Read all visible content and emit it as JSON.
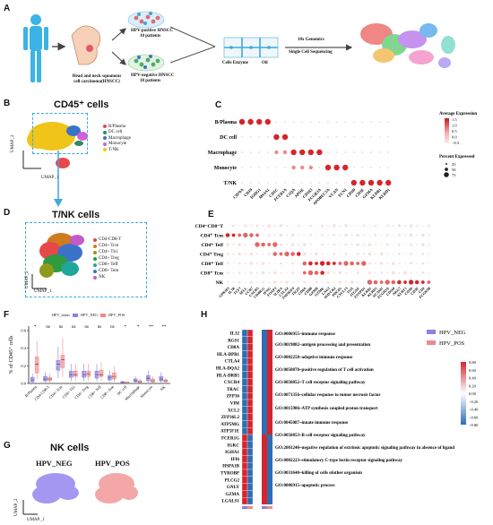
{
  "panels": {
    "A": {
      "label": "A",
      "labels": {
        "hnscc": "Head and neck squamous cell carcinoma(HNSCC)",
        "hpv_pos": "HPV-positive HNSCC",
        "hpv_pos_n": "10 patients",
        "hpv_neg": "HPV-negative HNSCC",
        "hpv_neg_n": "18 patients",
        "enzyme": "Cells Enzyme",
        "oil": "Oil",
        "genomics": "10x Genomics",
        "scseq": "Single Cell Sequencing"
      }
    },
    "B": {
      "label": "B",
      "title": "CD45⁺ cells",
      "legend": [
        {
          "name": "B/Plasma",
          "color": "#e8474a"
        },
        {
          "name": "DC cell",
          "color": "#2e8b57"
        },
        {
          "name": "Macrophage",
          "color": "#3b73c9"
        },
        {
          "name": "Monocyte",
          "color": "#d15fd6"
        },
        {
          "name": "T/NK",
          "color": "#f0c419"
        }
      ],
      "umap1": "UMAP_1",
      "umap2": "UMAP_2"
    },
    "C": {
      "label": "C",
      "rows": [
        "B/Plasma",
        "DC cell",
        "Macrophage",
        "Monocyte",
        "T/NK"
      ],
      "genes": [
        "CD79A",
        "CD19",
        "IGHG1",
        "MS4A1",
        "CD1C",
        "FCER1A",
        "C1QA",
        "APOE",
        "CD163",
        "FCGR3A",
        "APOBEC3A",
        "VCAN",
        "FCN1",
        "CD3D",
        "CD3E",
        "GZMA",
        "KLRB1",
        "KLRD1"
      ],
      "legend_title1": "Average Expression",
      "legend_ticks1": [
        "1.5",
        "1.0",
        "0.5",
        "0.0",
        "−0.5"
      ],
      "legend_title2": "Percent Expressed",
      "legend_pct": [
        "25",
        "50",
        "75"
      ]
    },
    "D": {
      "label": "D",
      "title": "T/NK cells",
      "legend": [
        {
          "name": "CD4-CD8-T",
          "color": "#e8474a"
        },
        {
          "name": "CD4+ Tcm",
          "color": "#d17b1f"
        },
        {
          "name": "CD4+ Th1",
          "color": "#8f9a1c"
        },
        {
          "name": "CD4+ Treg",
          "color": "#2f9a3f"
        },
        {
          "name": "CD8+ Teff",
          "color": "#1fa89a"
        },
        {
          "name": "CD8+ Tem",
          "color": "#3b73c9"
        },
        {
          "name": "NK",
          "color": "#c45ac9"
        }
      ],
      "umap1": "UMAP_1",
      "umap2": "UMAP_2"
    },
    "E": {
      "label": "E",
      "rows": [
        "CD4⁻CD8⁻T",
        "CD4⁺ Tcm",
        "CD4⁺ Teff",
        "CD4⁺ Treg",
        "CD8⁺ Teff",
        "CD8⁺ Tcm",
        "NK"
      ],
      "genes": [
        "GPR183",
        "IL7R",
        "TCF7",
        "SELL",
        "CCR7",
        "CXCR5",
        "CD40LG",
        "IFNG",
        "FOXP3",
        "IL2RA",
        "CTLA4",
        "TNFRSF4",
        "TIGIT",
        "CD8A",
        "CD8B",
        "GZMB",
        "GZMK",
        "LAG3",
        "HAVCR2",
        "PDCD1",
        "CXCL13",
        "TOX",
        "ITGAE",
        "ENTPD1",
        "KLRB1",
        "KLRD1",
        "NCAM1",
        "FCGR3A",
        "CD160",
        "NKG7",
        "KLRF1",
        "CD3D",
        "CD3E",
        "CD4",
        "FCGR3B"
      ]
    },
    "F": {
      "label": "F",
      "legend_title": "HPV_status",
      "legend_neg": "HPV_NEG",
      "legend_pos": "HPV_POS",
      "ylabel": "% of CD45⁺ cells",
      "yticks": [
        "0.0",
        "0.2",
        "0.4",
        "0.6"
      ],
      "categories": [
        "B/Plasma",
        "CD4-CD8-T",
        "CD4+ Tcm",
        "CD4+ Th1",
        "CD4+ Treg",
        "CD8+ Teff",
        "CD8+ Tem",
        "DC cell",
        "Macrophage",
        "Monocyte",
        "NK"
      ],
      "sig": [
        "*",
        "ns",
        "ns",
        "ns",
        "ns",
        "ns",
        "ns",
        "*",
        "*",
        "**",
        "**"
      ]
    },
    "G": {
      "label": "G",
      "title": "NK cells",
      "neg": "HPV_NEG",
      "pos": "HPV_POS",
      "umap1": "UMAP_1",
      "umap2": "UMAP_2"
    },
    "H": {
      "label": "H",
      "genes": [
        "IL32",
        "RGS1",
        "CD8A",
        "HLA-DPB1",
        "CTLA4",
        "HLA-DQA2",
        "HLA-DRB5",
        "CXCR4",
        "TRAC",
        "ZFP36",
        "VIM",
        "XCL2",
        "ZFP36L2",
        "ATP5MG",
        "ATP5F1E",
        "FCER1G",
        "IGKC",
        "IGHA1",
        "IFI6",
        "HSPA1B",
        "TYROBP",
        "PLCG2",
        "GNLY",
        "GZMA",
        "LGALS1"
      ],
      "go_terms": [
        "GO:0006955~immune response",
        "GO:0019882~antigen processing and presentation",
        "GO:0002250~adaptive immune response",
        "GO:0050870~positive regulation of T cell activation",
        "GO:0050852~T cell receptor signaling pathway",
        "GO:0071356~cellular response to tumor necrosis factor",
        "GO:0015986~ATP synthesis coupled proton transport",
        "GO:0045087~innate immune response",
        "GO:0050853~B cell receptor signaling pathway",
        "GO:2001240~negative regulation of extrinsic apoptotic signaling pathway in absence of ligand",
        "GO:0002223~stimulatory C-type lectin receptor signaling pathway",
        "GO:0031640~killing of cells ofother organism",
        "GO:0006915~apoptotic process"
      ],
      "legend": [
        {
          "name": "HPV_NEG",
          "color": "#8f7fe0"
        },
        {
          "name": "HPV_POS",
          "color": "#f08a8a"
        }
      ],
      "scale_ticks": [
        "0.80",
        "0.60",
        "0.40",
        "0.20",
        "0.00",
        "−0.20",
        "−0.40",
        "−0.60",
        "−0.80"
      ]
    }
  },
  "chart_data": {
    "type": "box",
    "ylabel": "% of CD45⁺ cells",
    "ylim": [
      0,
      0.65
    ],
    "categories": [
      "B/Plasma",
      "CD4-CD8-T",
      "CD4+ Tcm",
      "CD4+ Th1",
      "CD4+ Treg",
      "CD8+ Teff",
      "CD8+ Tem",
      "DC cell",
      "Macrophage",
      "Monocyte",
      "NK"
    ],
    "series": [
      {
        "name": "HPV_NEG",
        "color": "#8f7fe0",
        "median": [
          0.04,
          0.05,
          0.22,
          0.1,
          0.1,
          0.1,
          0.07,
          0.01,
          0.03,
          0.06,
          0.05
        ],
        "q1": [
          0.02,
          0.03,
          0.15,
          0.07,
          0.07,
          0.06,
          0.04,
          0.005,
          0.02,
          0.03,
          0.03
        ],
        "q3": [
          0.07,
          0.08,
          0.26,
          0.14,
          0.14,
          0.14,
          0.09,
          0.02,
          0.05,
          0.09,
          0.08
        ]
      },
      {
        "name": "HPV_POS",
        "color": "#f08a8a",
        "median": [
          0.22,
          0.05,
          0.27,
          0.1,
          0.11,
          0.1,
          0.08,
          0.01,
          0.02,
          0.03,
          0.03
        ],
        "q1": [
          0.12,
          0.03,
          0.18,
          0.08,
          0.08,
          0.08,
          0.05,
          0.005,
          0.01,
          0.015,
          0.02
        ],
        "q3": [
          0.3,
          0.07,
          0.32,
          0.14,
          0.14,
          0.15,
          0.12,
          0.015,
          0.03,
          0.05,
          0.04
        ]
      }
    ]
  }
}
